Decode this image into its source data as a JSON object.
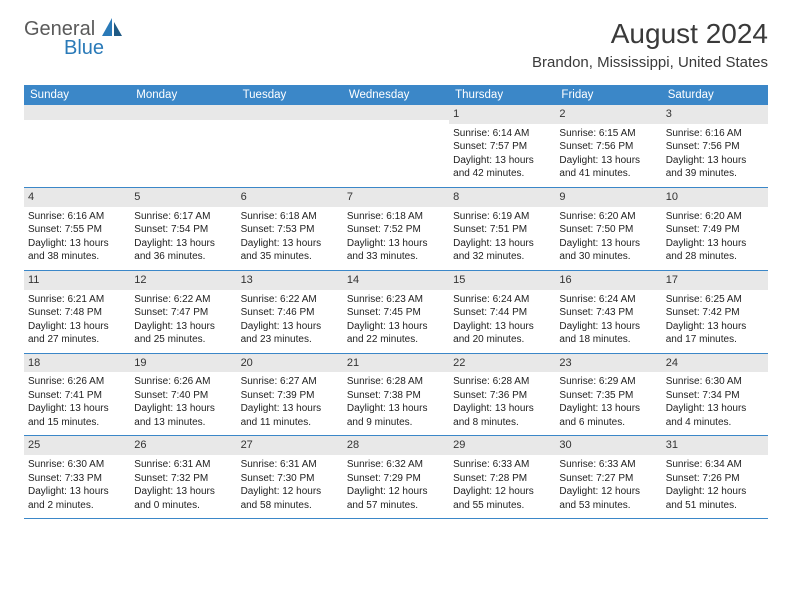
{
  "logo": {
    "text1": "General",
    "text2": "Blue",
    "accent_color": "#2a7ab8",
    "text_color": "#5a5a5a"
  },
  "title": "August 2024",
  "location": "Brandon, Mississippi, United States",
  "colors": {
    "header_bg": "#3b87c8",
    "header_fg": "#ffffff",
    "daynum_bg": "#e8e8e8",
    "border": "#3b87c8",
    "body_text": "#222222"
  },
  "weekdays": [
    "Sunday",
    "Monday",
    "Tuesday",
    "Wednesday",
    "Thursday",
    "Friday",
    "Saturday"
  ],
  "weeks": [
    [
      {
        "empty": true
      },
      {
        "empty": true
      },
      {
        "empty": true
      },
      {
        "empty": true
      },
      {
        "num": "1",
        "sunrise": "Sunrise: 6:14 AM",
        "sunset": "Sunset: 7:57 PM",
        "day1": "Daylight: 13 hours",
        "day2": "and 42 minutes."
      },
      {
        "num": "2",
        "sunrise": "Sunrise: 6:15 AM",
        "sunset": "Sunset: 7:56 PM",
        "day1": "Daylight: 13 hours",
        "day2": "and 41 minutes."
      },
      {
        "num": "3",
        "sunrise": "Sunrise: 6:16 AM",
        "sunset": "Sunset: 7:56 PM",
        "day1": "Daylight: 13 hours",
        "day2": "and 39 minutes."
      }
    ],
    [
      {
        "num": "4",
        "sunrise": "Sunrise: 6:16 AM",
        "sunset": "Sunset: 7:55 PM",
        "day1": "Daylight: 13 hours",
        "day2": "and 38 minutes."
      },
      {
        "num": "5",
        "sunrise": "Sunrise: 6:17 AM",
        "sunset": "Sunset: 7:54 PM",
        "day1": "Daylight: 13 hours",
        "day2": "and 36 minutes."
      },
      {
        "num": "6",
        "sunrise": "Sunrise: 6:18 AM",
        "sunset": "Sunset: 7:53 PM",
        "day1": "Daylight: 13 hours",
        "day2": "and 35 minutes."
      },
      {
        "num": "7",
        "sunrise": "Sunrise: 6:18 AM",
        "sunset": "Sunset: 7:52 PM",
        "day1": "Daylight: 13 hours",
        "day2": "and 33 minutes."
      },
      {
        "num": "8",
        "sunrise": "Sunrise: 6:19 AM",
        "sunset": "Sunset: 7:51 PM",
        "day1": "Daylight: 13 hours",
        "day2": "and 32 minutes."
      },
      {
        "num": "9",
        "sunrise": "Sunrise: 6:20 AM",
        "sunset": "Sunset: 7:50 PM",
        "day1": "Daylight: 13 hours",
        "day2": "and 30 minutes."
      },
      {
        "num": "10",
        "sunrise": "Sunrise: 6:20 AM",
        "sunset": "Sunset: 7:49 PM",
        "day1": "Daylight: 13 hours",
        "day2": "and 28 minutes."
      }
    ],
    [
      {
        "num": "11",
        "sunrise": "Sunrise: 6:21 AM",
        "sunset": "Sunset: 7:48 PM",
        "day1": "Daylight: 13 hours",
        "day2": "and 27 minutes."
      },
      {
        "num": "12",
        "sunrise": "Sunrise: 6:22 AM",
        "sunset": "Sunset: 7:47 PM",
        "day1": "Daylight: 13 hours",
        "day2": "and 25 minutes."
      },
      {
        "num": "13",
        "sunrise": "Sunrise: 6:22 AM",
        "sunset": "Sunset: 7:46 PM",
        "day1": "Daylight: 13 hours",
        "day2": "and 23 minutes."
      },
      {
        "num": "14",
        "sunrise": "Sunrise: 6:23 AM",
        "sunset": "Sunset: 7:45 PM",
        "day1": "Daylight: 13 hours",
        "day2": "and 22 minutes."
      },
      {
        "num": "15",
        "sunrise": "Sunrise: 6:24 AM",
        "sunset": "Sunset: 7:44 PM",
        "day1": "Daylight: 13 hours",
        "day2": "and 20 minutes."
      },
      {
        "num": "16",
        "sunrise": "Sunrise: 6:24 AM",
        "sunset": "Sunset: 7:43 PM",
        "day1": "Daylight: 13 hours",
        "day2": "and 18 minutes."
      },
      {
        "num": "17",
        "sunrise": "Sunrise: 6:25 AM",
        "sunset": "Sunset: 7:42 PM",
        "day1": "Daylight: 13 hours",
        "day2": "and 17 minutes."
      }
    ],
    [
      {
        "num": "18",
        "sunrise": "Sunrise: 6:26 AM",
        "sunset": "Sunset: 7:41 PM",
        "day1": "Daylight: 13 hours",
        "day2": "and 15 minutes."
      },
      {
        "num": "19",
        "sunrise": "Sunrise: 6:26 AM",
        "sunset": "Sunset: 7:40 PM",
        "day1": "Daylight: 13 hours",
        "day2": "and 13 minutes."
      },
      {
        "num": "20",
        "sunrise": "Sunrise: 6:27 AM",
        "sunset": "Sunset: 7:39 PM",
        "day1": "Daylight: 13 hours",
        "day2": "and 11 minutes."
      },
      {
        "num": "21",
        "sunrise": "Sunrise: 6:28 AM",
        "sunset": "Sunset: 7:38 PM",
        "day1": "Daylight: 13 hours",
        "day2": "and 9 minutes."
      },
      {
        "num": "22",
        "sunrise": "Sunrise: 6:28 AM",
        "sunset": "Sunset: 7:36 PM",
        "day1": "Daylight: 13 hours",
        "day2": "and 8 minutes."
      },
      {
        "num": "23",
        "sunrise": "Sunrise: 6:29 AM",
        "sunset": "Sunset: 7:35 PM",
        "day1": "Daylight: 13 hours",
        "day2": "and 6 minutes."
      },
      {
        "num": "24",
        "sunrise": "Sunrise: 6:30 AM",
        "sunset": "Sunset: 7:34 PM",
        "day1": "Daylight: 13 hours",
        "day2": "and 4 minutes."
      }
    ],
    [
      {
        "num": "25",
        "sunrise": "Sunrise: 6:30 AM",
        "sunset": "Sunset: 7:33 PM",
        "day1": "Daylight: 13 hours",
        "day2": "and 2 minutes."
      },
      {
        "num": "26",
        "sunrise": "Sunrise: 6:31 AM",
        "sunset": "Sunset: 7:32 PM",
        "day1": "Daylight: 13 hours",
        "day2": "and 0 minutes."
      },
      {
        "num": "27",
        "sunrise": "Sunrise: 6:31 AM",
        "sunset": "Sunset: 7:30 PM",
        "day1": "Daylight: 12 hours",
        "day2": "and 58 minutes."
      },
      {
        "num": "28",
        "sunrise": "Sunrise: 6:32 AM",
        "sunset": "Sunset: 7:29 PM",
        "day1": "Daylight: 12 hours",
        "day2": "and 57 minutes."
      },
      {
        "num": "29",
        "sunrise": "Sunrise: 6:33 AM",
        "sunset": "Sunset: 7:28 PM",
        "day1": "Daylight: 12 hours",
        "day2": "and 55 minutes."
      },
      {
        "num": "30",
        "sunrise": "Sunrise: 6:33 AM",
        "sunset": "Sunset: 7:27 PM",
        "day1": "Daylight: 12 hours",
        "day2": "and 53 minutes."
      },
      {
        "num": "31",
        "sunrise": "Sunrise: 6:34 AM",
        "sunset": "Sunset: 7:26 PM",
        "day1": "Daylight: 12 hours",
        "day2": "and 51 minutes."
      }
    ]
  ]
}
